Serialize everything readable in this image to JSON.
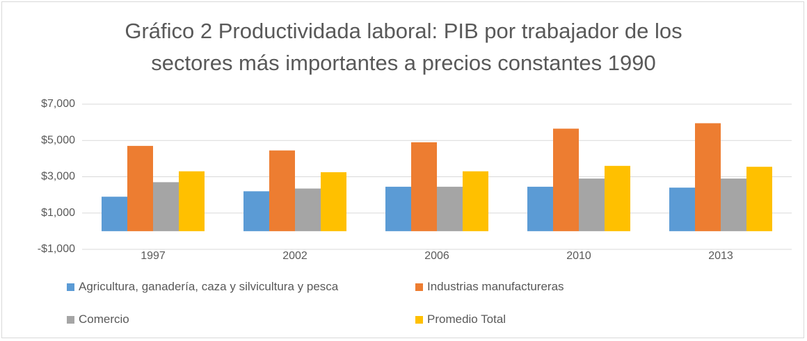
{
  "chart_data": {
    "type": "bar",
    "title": "Gráfico 2 Productividada laboral: PIB por trabajador de los sectores más importantes a precios constantes 1990",
    "categories": [
      "1997",
      "2002",
      "2006",
      "2010",
      "2013"
    ],
    "series": [
      {
        "name": "Agricultura, ganadería, caza y silvicultura y pesca",
        "color": "#5b9bd5",
        "values": [
          1900,
          2200,
          2450,
          2450,
          2400
        ]
      },
      {
        "name": "Industrias manufactureras",
        "color": "#ed7d31",
        "values": [
          4700,
          4450,
          4900,
          5650,
          5950
        ]
      },
      {
        "name": "Comercio",
        "color": "#a5a5a5",
        "values": [
          2700,
          2350,
          2450,
          2900,
          2900
        ]
      },
      {
        "name": "Promedio Total",
        "color": "#ffc000",
        "values": [
          3300,
          3250,
          3300,
          3600,
          3550
        ]
      }
    ],
    "ylim": [
      -1000,
      7000
    ],
    "yticks": [
      {
        "value": -1000,
        "label": "-$1,000"
      },
      {
        "value": 1000,
        "label": "$1,000"
      },
      {
        "value": 3000,
        "label": "$3,000"
      },
      {
        "value": 5000,
        "label": "$5,000"
      },
      {
        "value": 7000,
        "label": "$7,000"
      }
    ],
    "grid": true
  }
}
